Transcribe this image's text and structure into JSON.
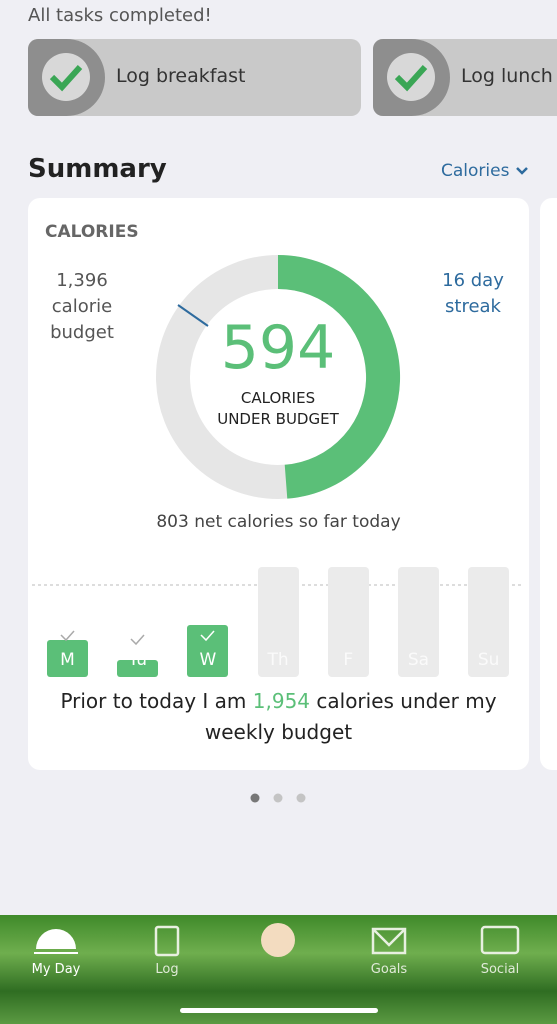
{
  "status": "All tasks completed!",
  "tasks": [
    {
      "label": "Log breakfast"
    },
    {
      "label": "Log lunch"
    }
  ],
  "summary": {
    "title": "Summary",
    "selector": "Calories",
    "card": {
      "heading": "CALORIES",
      "budget": [
        "1,396",
        "calorie",
        "budget"
      ],
      "streak": [
        "16 day",
        "streak"
      ],
      "big_number": "594",
      "big_caption": [
        "CALORIES",
        "UNDER BUDGET"
      ],
      "net": "803 net calories so far today",
      "days": [
        "M",
        "Tu",
        "W",
        "Th",
        "F",
        "Sa",
        "Su"
      ],
      "weekly": {
        "prefix": "Prior to today I am",
        "highlight": "1,954",
        "suffix": "calories under my",
        "line2": "weekly budget"
      }
    }
  },
  "tabs": [
    "My Day",
    "Log",
    "Goals",
    "Social"
  ]
}
